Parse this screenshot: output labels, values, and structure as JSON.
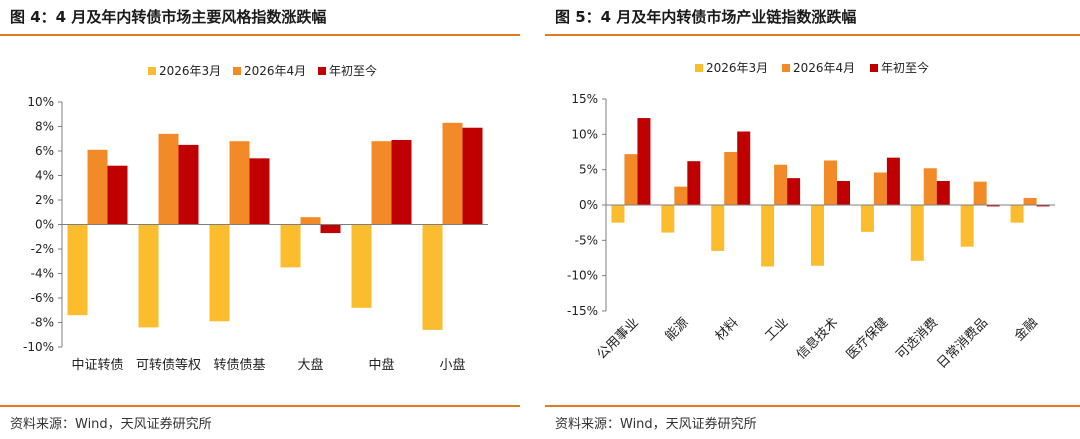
{
  "colors": {
    "march": "#fbbd2e",
    "april": "#f28b27",
    "ytd": "#c00000",
    "accent": "#e07a1f"
  },
  "left": {
    "title": "图 4：4 月及年内转债市场主要风格指数涨跌幅",
    "source": "资料来源：Wind，天风证券研究所"
  },
  "right": {
    "title": "图 5：4 月及年内转债市场产业链指数涨跌幅",
    "source": "资料来源：Wind，天风证券研究所"
  },
  "chart_data": [
    {
      "type": "bar",
      "categories": [
        "中证转债",
        "可转债等权",
        "转债债基",
        "大盘",
        "中盘",
        "小盘"
      ],
      "series": [
        {
          "name": "2026年3月",
          "values": [
            -7.4,
            -8.4,
            -7.9,
            -3.5,
            -6.8,
            -8.6
          ]
        },
        {
          "name": "2026年4月",
          "values": [
            6.1,
            7.4,
            6.8,
            0.6,
            6.8,
            8.3
          ]
        },
        {
          "name": "年初至今",
          "values": [
            4.8,
            6.5,
            5.4,
            -0.7,
            6.9,
            7.9
          ]
        }
      ],
      "ylim": [
        -10,
        10
      ],
      "yticks": [
        "10%",
        "8%",
        "6%",
        "4%",
        "2%",
        "0%",
        "-2%",
        "-4%",
        "-6%",
        "-8%",
        "-10%"
      ],
      "legend": "top-center",
      "grid": false
    },
    {
      "type": "bar",
      "categories": [
        "公用事业",
        "能源",
        "材料",
        "工业",
        "信息技术",
        "医疗保健",
        "可选消费",
        "日常消费品",
        "金融"
      ],
      "series": [
        {
          "name": "2026年3月",
          "values": [
            -2.5,
            -3.9,
            -6.5,
            -8.7,
            -8.6,
            -3.8,
            -7.9,
            -5.9,
            -2.5
          ]
        },
        {
          "name": "2026年4月",
          "values": [
            7.2,
            2.6,
            7.5,
            5.7,
            6.3,
            4.6,
            5.2,
            3.3,
            1.0
          ]
        },
        {
          "name": "年初至今",
          "values": [
            12.3,
            6.2,
            10.4,
            3.8,
            3.4,
            6.7,
            3.4,
            -0.2,
            -0.2
          ]
        }
      ],
      "ylim": [
        -15,
        15
      ],
      "yticks": [
        "15%",
        "10%",
        "5%",
        "0%",
        "-5%",
        "-10%",
        "-15%"
      ],
      "legend": "top-center",
      "grid": false
    }
  ]
}
